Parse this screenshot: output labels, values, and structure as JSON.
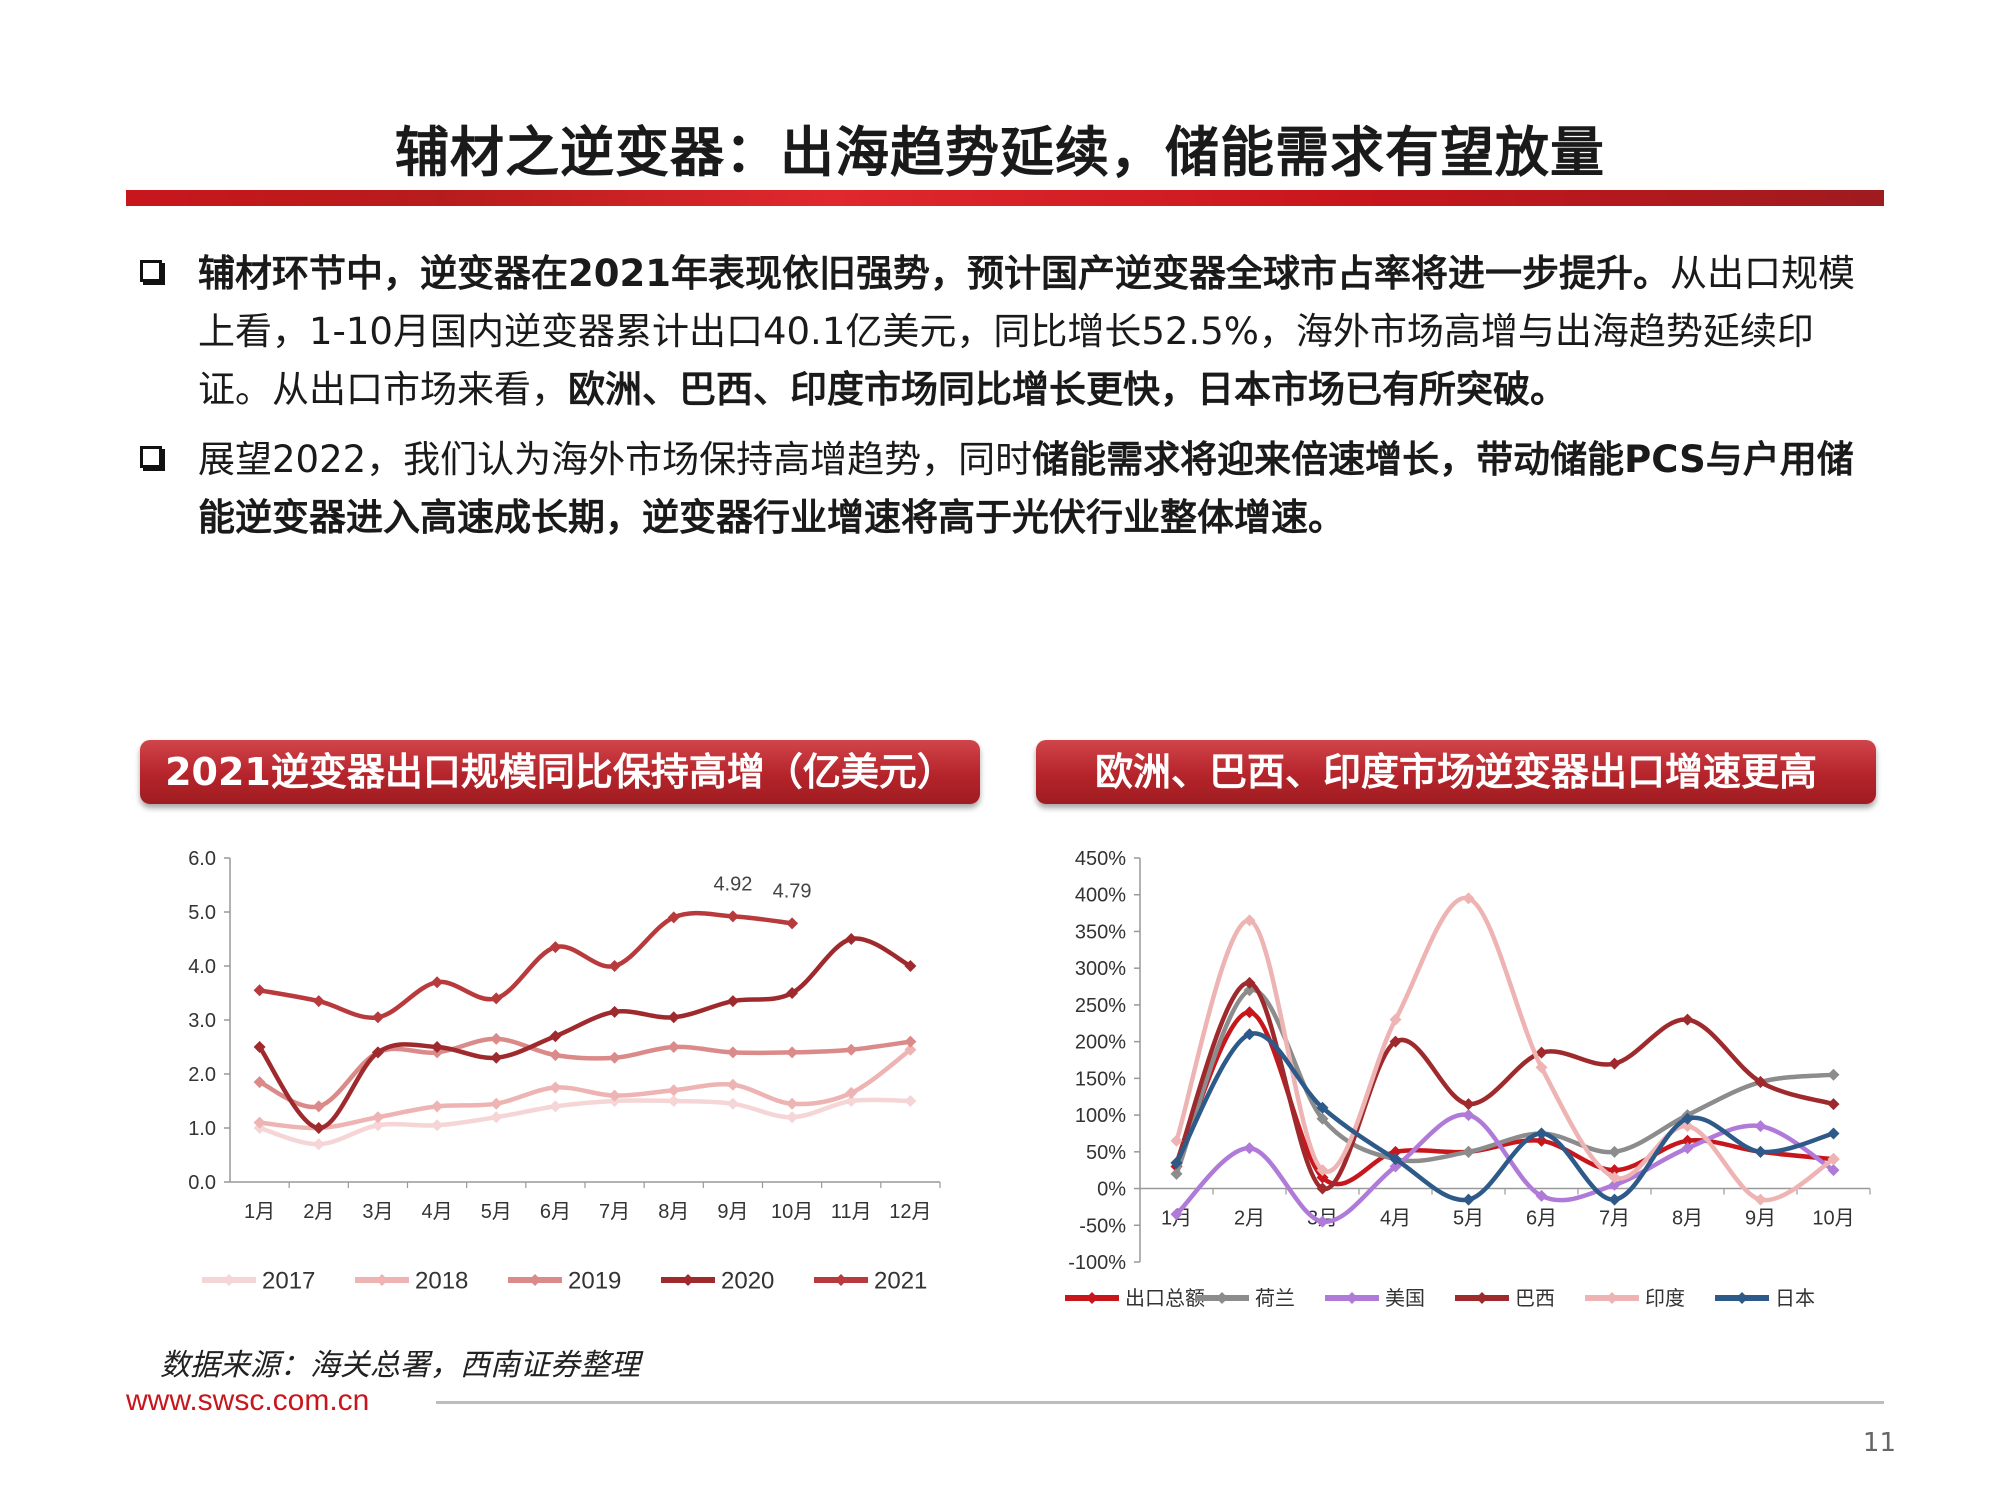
{
  "title": "辅材之逆变器：出海趋势延续，储能需求有望放量",
  "bullets": [
    {
      "bold_lead": "辅材环节中，逆变器在2021年表现依旧强势，预计国产逆变器全球市占率将进一步提升。",
      "text_mid": "从出口规模上看，1-10月国内逆变器累计出口40.1亿美元，同比增长52.5%，海外市场高增与出海趋势延续印证。从出口市场来看，",
      "bold_tail": "欧洲、巴西、印度市场同比增长更快，日本市场已有所突破。"
    },
    {
      "text_lead": "展望2022，我们认为海外市场保持高增趋势，同时",
      "bold_tail": "储能需求将迎来倍速增长，带动储能PCS与户用储能逆变器进入高速成长期，逆变器行业增速将高于光伏行业整体增速。"
    }
  ],
  "left_panel_title": "2021逆变器出口规模同比保持高增（亿美元）",
  "right_panel_title": "欧洲、巴西、印度市场逆变器出口增速更高",
  "chart_data": [
    {
      "type": "line",
      "categories": [
        "1月",
        "2月",
        "3月",
        "4月",
        "5月",
        "6月",
        "7月",
        "8月",
        "9月",
        "10月",
        "11月",
        "12月"
      ],
      "ylim": [
        0,
        6
      ],
      "yticks": [
        "0.0",
        "1.0",
        "2.0",
        "3.0",
        "4.0",
        "5.0",
        "6.0"
      ],
      "series": [
        {
          "name": "2017",
          "color": "#f5d5d5",
          "values": [
            1.0,
            0.7,
            1.05,
            1.05,
            1.2,
            1.4,
            1.5,
            1.5,
            1.45,
            1.2,
            1.5,
            1.5
          ]
        },
        {
          "name": "2018",
          "color": "#eeb3b3",
          "values": [
            1.1,
            1.0,
            1.2,
            1.4,
            1.45,
            1.75,
            1.6,
            1.7,
            1.8,
            1.45,
            1.65,
            2.45
          ]
        },
        {
          "name": "2019",
          "color": "#db8a8a",
          "values": [
            1.85,
            1.4,
            2.4,
            2.4,
            2.65,
            2.35,
            2.3,
            2.5,
            2.4,
            2.4,
            2.45,
            2.6
          ]
        },
        {
          "name": "2020",
          "color": "#9f2a2d",
          "values": [
            2.5,
            1.0,
            2.4,
            2.5,
            2.3,
            2.7,
            3.15,
            3.05,
            3.35,
            3.5,
            4.5,
            4.0
          ]
        },
        {
          "name": "2021",
          "color": "#b83a3d",
          "values": [
            3.55,
            3.35,
            3.05,
            3.7,
            3.4,
            4.35,
            4.0,
            4.9,
            4.92,
            4.79,
            null,
            null
          ]
        }
      ],
      "annotations": [
        {
          "category": "9月",
          "value": 4.92,
          "label": "4.92"
        },
        {
          "category": "10月",
          "value": 4.79,
          "label": "4.79"
        }
      ]
    },
    {
      "type": "line",
      "categories": [
        "1月",
        "2月",
        "3月",
        "4月",
        "5月",
        "6月",
        "7月",
        "8月",
        "9月",
        "10月"
      ],
      "ylim": [
        -100,
        450
      ],
      "yticks": [
        "-100%",
        "-50%",
        "0%",
        "50%",
        "100%",
        "150%",
        "200%",
        "250%",
        "300%",
        "350%",
        "400%",
        "450%"
      ],
      "series": [
        {
          "name": "出口总额",
          "color": "#c8161d",
          "values": [
            30,
            240,
            15,
            50,
            50,
            65,
            25,
            65,
            50,
            40
          ]
        },
        {
          "name": "荷兰",
          "color": "#8c8c8c",
          "values": [
            20,
            270,
            95,
            40,
            50,
            75,
            50,
            100,
            145,
            155
          ]
        },
        {
          "name": "美国",
          "color": "#b07ad8",
          "values": [
            -35,
            55,
            -45,
            30,
            100,
            -10,
            5,
            55,
            85,
            25
          ]
        },
        {
          "name": "巴西",
          "color": "#9f2a2d",
          "values": [
            35,
            280,
            0,
            200,
            115,
            185,
            170,
            230,
            145,
            115
          ]
        },
        {
          "name": "印度",
          "color": "#eeb3b3",
          "values": [
            65,
            365,
            25,
            230,
            395,
            165,
            15,
            85,
            -15,
            40
          ]
        },
        {
          "name": "日本",
          "color": "#2e5a8a",
          "values": [
            35,
            210,
            110,
            40,
            -15,
            75,
            -15,
            95,
            50,
            75
          ]
        }
      ]
    }
  ],
  "source": "数据来源：海关总署，西南证券整理",
  "website": "www.swsc.com.cn",
  "page_number": "11"
}
